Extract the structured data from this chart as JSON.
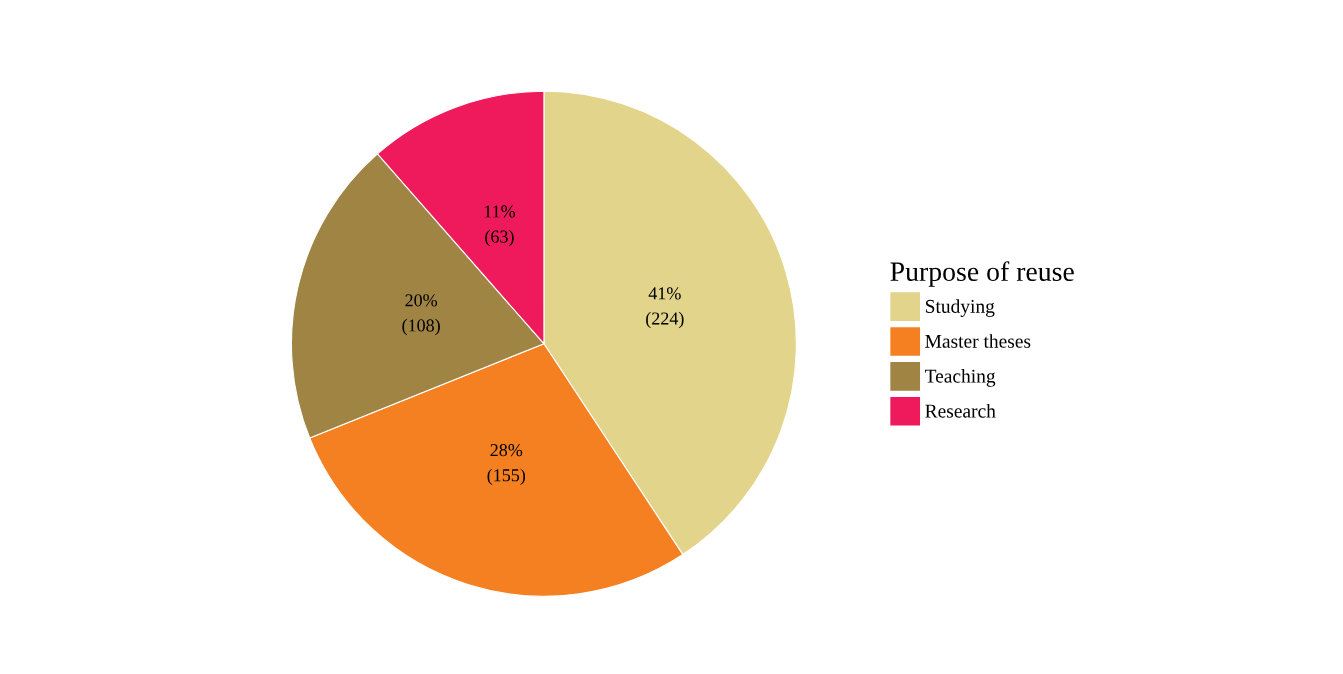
{
  "chart_data": {
    "type": "pie",
    "categories": [
      "Studying",
      "Master theses",
      "Teaching",
      "Research"
    ],
    "values": [
      224,
      155,
      108,
      63
    ],
    "value_labels": [
      "41%\n(224)",
      "28%\n(155)",
      "20%\n(108)",
      "11%\n(63)"
    ],
    "colors": [
      "#e3d48c",
      "#f58021",
      "#a08444",
      "#ee1a5c"
    ],
    "legend_title": "Purpose of reuse",
    "legend": "right"
  }
}
